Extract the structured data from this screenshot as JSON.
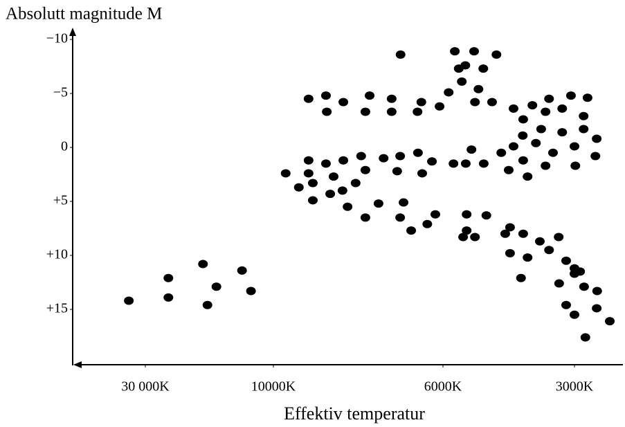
{
  "chart_data": {
    "type": "scatter",
    "title": "Absolutt magnitude M",
    "x_label": "Effektiv temperatur",
    "color": "#000000",
    "xlim": [
      41000,
      2000
    ],
    "xticks": [
      {
        "value": 30000,
        "label": "30 000K"
      },
      {
        "value": 10000,
        "label": "10000K"
      },
      {
        "value": 6000,
        "label": "6000K"
      },
      {
        "value": 3000,
        "label": "3000K"
      }
    ],
    "ylim": [
      -11,
      20
    ],
    "yticks": [
      {
        "value": -10,
        "label": "−10"
      },
      {
        "value": -5,
        "label": "−5"
      },
      0,
      {
        "value": 5,
        "label": "+5"
      },
      {
        "value": 10,
        "label": "+10"
      },
      {
        "value": 15,
        "label": "+15"
      }
    ],
    "x": [
      32500,
      26400,
      26400,
      21000,
      18900,
      20300,
      14900,
      13500,
      7000,
      5730,
      5290,
      4780,
      5640,
      5490,
      5080,
      9170,
      8760,
      8350,
      7730,
      7210,
      6510,
      8740,
      7830,
      7210,
      6600,
      6080,
      5870,
      5570,
      5190,
      5270,
      4880,
      4390,
      3960,
      3580,
      3080,
      2700,
      4170,
      3660,
      3280,
      2790,
      4180,
      3760,
      3280,
      2790,
      2490,
      4390,
      3880,
      3000,
      4670,
      4170,
      3490,
      2520,
      4500,
      4070,
      3660,
      2980,
      9170,
      8760,
      8350,
      7930,
      7400,
      7010,
      6590,
      5350,
      5760,
      5480,
      5070,
      6260,
      9710,
      9170,
      8580,
      7830,
      7080,
      6490,
      9400,
      9070,
      8660,
      8370,
      8060,
      9070,
      8250,
      7520,
      6930,
      7830,
      7010,
      6750,
      6370,
      6180,
      5540,
      5460,
      5460,
      5270,
      5010,
      4580,
      4470,
      4170,
      3790,
      3360,
      4470,
      4070,
      3580,
      3190,
      3000,
      2870,
      4220,
      3350,
      3000,
      2780,
      2480,
      3190,
      3000,
      2490,
      2190,
      2750
    ],
    "values": [
      14.2,
      12.1,
      13.9,
      10.8,
      12.9,
      14.6,
      11.4,
      13.3,
      -8.6,
      -8.9,
      -8.9,
      -8.6,
      -7.3,
      -7.6,
      -7.3,
      -4.5,
      -4.8,
      -4.2,
      -4.8,
      -4.5,
      -4.2,
      -3.3,
      -3.3,
      -3.3,
      -3.3,
      -3.8,
      -5.1,
      -6.1,
      -5.4,
      -4.2,
      -4.2,
      -3.6,
      -3.9,
      -4.5,
      -4.8,
      -4.6,
      -2.6,
      -3.3,
      -3.6,
      -2.9,
      -1.1,
      -1.7,
      -1.4,
      -1.7,
      -0.8,
      -0.1,
      -0.4,
      -0.1,
      0.5,
      1.2,
      0.5,
      0.8,
      2.1,
      2.7,
      1.7,
      1.7,
      1.2,
      1.5,
      1.2,
      0.8,
      1.0,
      0.8,
      0.5,
      0.2,
      1.5,
      1.5,
      1.5,
      1.3,
      2.4,
      2.4,
      2.7,
      2.1,
      2.2,
      2.4,
      3.7,
      3.3,
      4.3,
      4.0,
      3.3,
      4.9,
      5.5,
      5.2,
      5.1,
      6.5,
      6.5,
      7.7,
      7.1,
      6.2,
      8.3,
      6.2,
      7.7,
      8.3,
      6.3,
      8.0,
      7.4,
      8.0,
      8.7,
      8.3,
      9.8,
      10.2,
      9.5,
      10.5,
      11.2,
      11.5,
      12.1,
      12.6,
      11.7,
      12.9,
      13.3,
      14.6,
      15.5,
      14.9,
      16.1,
      17.6
    ]
  }
}
